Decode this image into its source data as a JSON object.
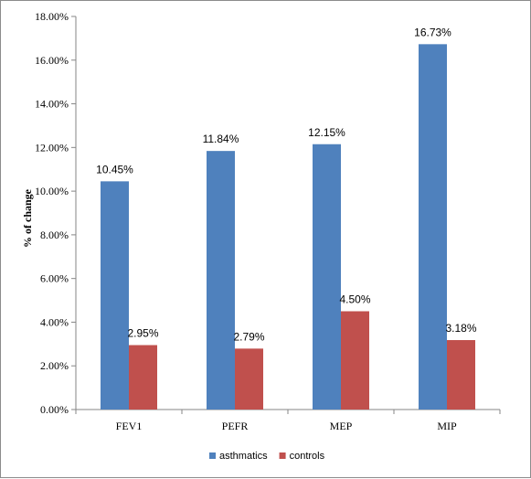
{
  "chart_data": {
    "type": "bar",
    "title": "",
    "xlabel": "",
    "ylabel": "% of change",
    "categories": [
      "FEV1",
      "PEFR",
      "MEP",
      "MIP"
    ],
    "series": [
      {
        "name": "asthmatics",
        "color": "#4f81bd",
        "values": [
          10.45,
          11.84,
          12.15,
          16.73
        ],
        "labels": [
          "10.45%",
          "11.84%",
          "12.15%",
          "16.73%"
        ]
      },
      {
        "name": "controls",
        "color": "#c0504d",
        "values": [
          2.95,
          2.79,
          4.5,
          3.18
        ],
        "labels": [
          "2.95%",
          "2.79%",
          "4.50%",
          "3.18%"
        ]
      }
    ],
    "ylim": [
      0,
      18
    ],
    "yticks": [
      0,
      2,
      4,
      6,
      8,
      10,
      12,
      14,
      16,
      18
    ],
    "ytick_labels": [
      "0.00%",
      "2.00%",
      "4.00%",
      "6.00%",
      "8.00%",
      "10.00%",
      "12.00%",
      "14.00%",
      "16.00%",
      "18.00%"
    ],
    "grid": false,
    "legend_position": "bottom"
  }
}
